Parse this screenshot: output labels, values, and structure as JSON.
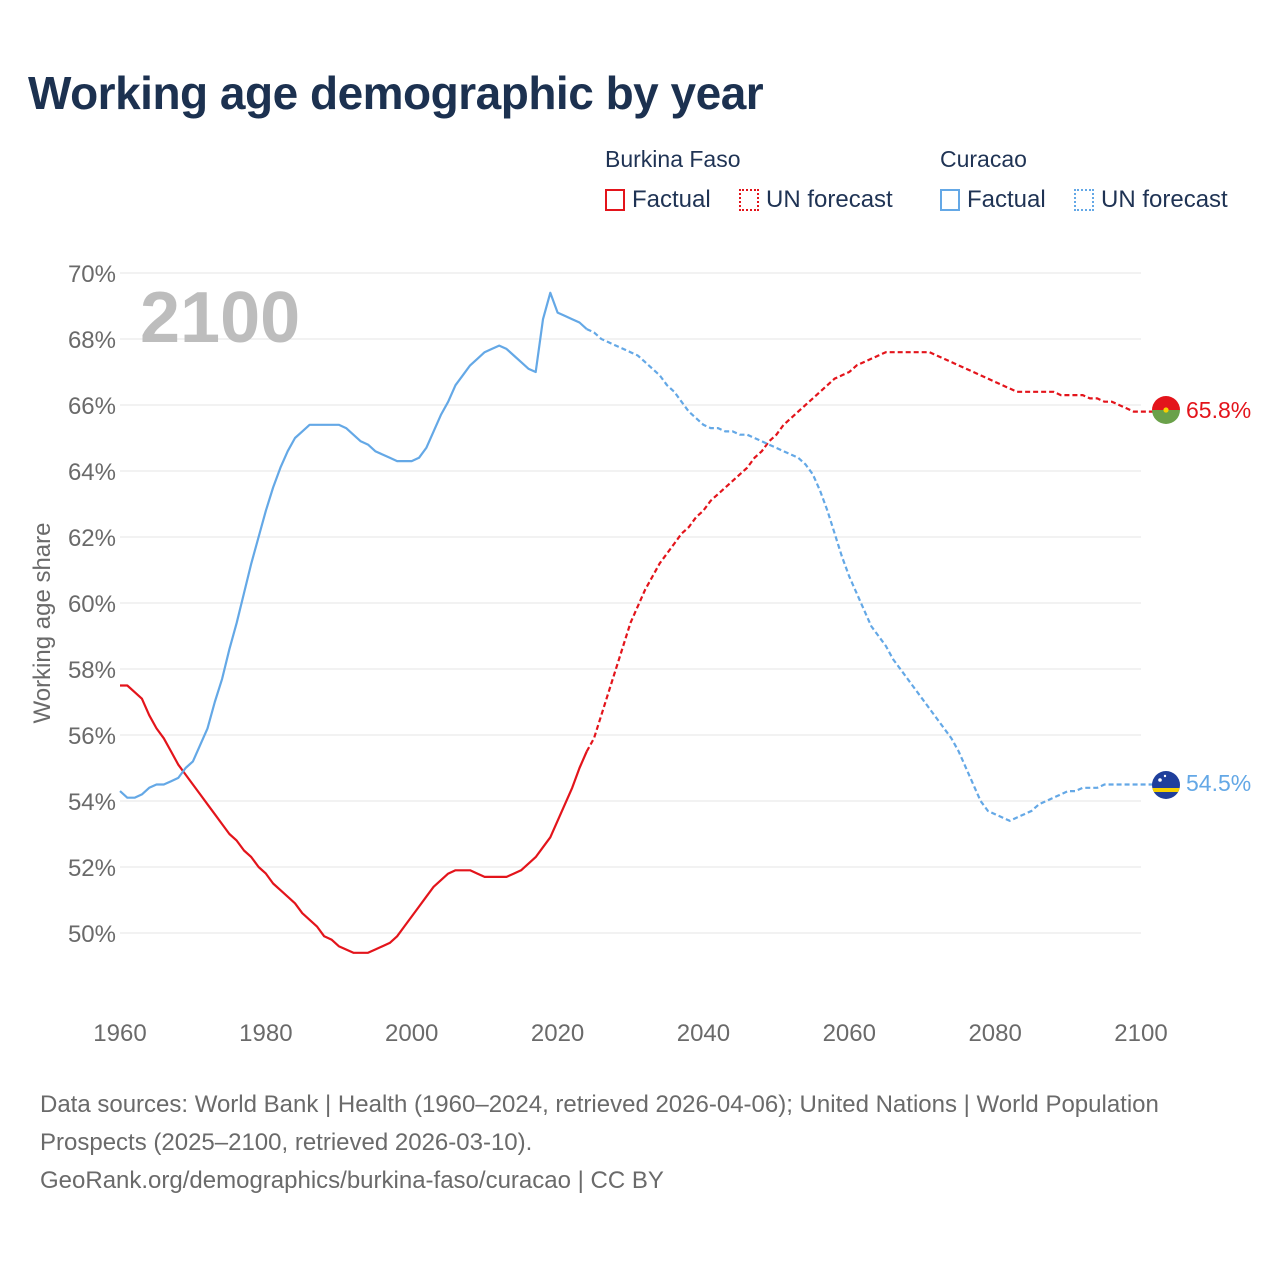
{
  "title": "Working age demographic by year",
  "legend": {
    "groups": [
      {
        "name": "Burkina Faso",
        "color": "#e3141b",
        "factual_label": "Factual",
        "forecast_label": "UN forecast"
      },
      {
        "name": "Curacao",
        "color": "#64a8e6",
        "factual_label": "Factual",
        "forecast_label": "UN forecast"
      }
    ]
  },
  "footer": {
    "sources": "Data sources: World Bank | Health (1960–2024, retrieved 2026-04-06); United Nations | World Population Prospects (2025–2100, retrieved 2026-03-10).",
    "link": "GeoRank.org/demographics/burkina-faso/curacao | CC BY"
  },
  "chart_data": {
    "type": "line",
    "title": "Working age demographic by year",
    "year_overlay": "2100",
    "xlabel": "",
    "ylabel": "Working age share",
    "xlim": [
      1960,
      2104
    ],
    "ylim": [
      48,
      70.5
    ],
    "x_ticks": [
      1960,
      1980,
      2000,
      2020,
      2040,
      2060,
      2080,
      2100
    ],
    "y_ticks": [
      50,
      52,
      54,
      56,
      58,
      60,
      62,
      64,
      66,
      68,
      70
    ],
    "y_tick_labels": [
      "50%",
      "52%",
      "54%",
      "56%",
      "58%",
      "60%",
      "62%",
      "64%",
      "66%",
      "68%",
      "70%"
    ],
    "grid": true,
    "factual_end_year": 2024,
    "series": [
      {
        "name": "Burkina Faso",
        "color": "#e3141b",
        "end_label": "65.8%",
        "flag": "burkina-faso",
        "points": [
          [
            1960,
            57.5
          ],
          [
            1961,
            57.5
          ],
          [
            1962,
            57.3
          ],
          [
            1963,
            57.1
          ],
          [
            1964,
            56.6
          ],
          [
            1965,
            56.2
          ],
          [
            1966,
            55.9
          ],
          [
            1967,
            55.5
          ],
          [
            1968,
            55.1
          ],
          [
            1969,
            54.8
          ],
          [
            1970,
            54.5
          ],
          [
            1971,
            54.2
          ],
          [
            1972,
            53.9
          ],
          [
            1973,
            53.6
          ],
          [
            1974,
            53.3
          ],
          [
            1975,
            53.0
          ],
          [
            1976,
            52.8
          ],
          [
            1977,
            52.5
          ],
          [
            1978,
            52.3
          ],
          [
            1979,
            52.0
          ],
          [
            1980,
            51.8
          ],
          [
            1981,
            51.5
          ],
          [
            1982,
            51.3
          ],
          [
            1983,
            51.1
          ],
          [
            1984,
            50.9
          ],
          [
            1985,
            50.6
          ],
          [
            1986,
            50.4
          ],
          [
            1987,
            50.2
          ],
          [
            1988,
            49.9
          ],
          [
            1989,
            49.8
          ],
          [
            1990,
            49.6
          ],
          [
            1991,
            49.5
          ],
          [
            1992,
            49.4
          ],
          [
            1993,
            49.4
          ],
          [
            1994,
            49.4
          ],
          [
            1995,
            49.5
          ],
          [
            1996,
            49.6
          ],
          [
            1997,
            49.7
          ],
          [
            1998,
            49.9
          ],
          [
            1999,
            50.2
          ],
          [
            2000,
            50.5
          ],
          [
            2001,
            50.8
          ],
          [
            2002,
            51.1
          ],
          [
            2003,
            51.4
          ],
          [
            2004,
            51.6
          ],
          [
            2005,
            51.8
          ],
          [
            2006,
            51.9
          ],
          [
            2007,
            51.9
          ],
          [
            2008,
            51.9
          ],
          [
            2009,
            51.8
          ],
          [
            2010,
            51.7
          ],
          [
            2011,
            51.7
          ],
          [
            2012,
            51.7
          ],
          [
            2013,
            51.7
          ],
          [
            2014,
            51.8
          ],
          [
            2015,
            51.9
          ],
          [
            2016,
            52.1
          ],
          [
            2017,
            52.3
          ],
          [
            2018,
            52.6
          ],
          [
            2019,
            52.9
          ],
          [
            2020,
            53.4
          ],
          [
            2021,
            53.9
          ],
          [
            2022,
            54.4
          ],
          [
            2023,
            55.0
          ],
          [
            2024,
            55.5
          ],
          [
            2025,
            55.9
          ],
          [
            2026,
            56.6
          ],
          [
            2027,
            57.3
          ],
          [
            2028,
            58.0
          ],
          [
            2029,
            58.7
          ],
          [
            2030,
            59.4
          ],
          [
            2031,
            59.9
          ],
          [
            2032,
            60.4
          ],
          [
            2033,
            60.8
          ],
          [
            2034,
            61.2
          ],
          [
            2035,
            61.5
          ],
          [
            2036,
            61.8
          ],
          [
            2037,
            62.1
          ],
          [
            2038,
            62.3
          ],
          [
            2039,
            62.6
          ],
          [
            2040,
            62.8
          ],
          [
            2041,
            63.1
          ],
          [
            2042,
            63.3
          ],
          [
            2043,
            63.5
          ],
          [
            2044,
            63.7
          ],
          [
            2045,
            63.9
          ],
          [
            2046,
            64.1
          ],
          [
            2047,
            64.4
          ],
          [
            2048,
            64.6
          ],
          [
            2049,
            64.9
          ],
          [
            2050,
            65.1
          ],
          [
            2051,
            65.4
          ],
          [
            2052,
            65.6
          ],
          [
            2053,
            65.8
          ],
          [
            2054,
            66.0
          ],
          [
            2055,
            66.2
          ],
          [
            2056,
            66.4
          ],
          [
            2057,
            66.6
          ],
          [
            2058,
            66.8
          ],
          [
            2059,
            66.9
          ],
          [
            2060,
            67.0
          ],
          [
            2061,
            67.2
          ],
          [
            2062,
            67.3
          ],
          [
            2063,
            67.4
          ],
          [
            2064,
            67.5
          ],
          [
            2065,
            67.6
          ],
          [
            2066,
            67.6
          ],
          [
            2067,
            67.6
          ],
          [
            2068,
            67.6
          ],
          [
            2069,
            67.6
          ],
          [
            2070,
            67.6
          ],
          [
            2071,
            67.6
          ],
          [
            2072,
            67.5
          ],
          [
            2073,
            67.4
          ],
          [
            2074,
            67.3
          ],
          [
            2075,
            67.2
          ],
          [
            2076,
            67.1
          ],
          [
            2077,
            67.0
          ],
          [
            2078,
            66.9
          ],
          [
            2079,
            66.8
          ],
          [
            2080,
            66.7
          ],
          [
            2081,
            66.6
          ],
          [
            2082,
            66.5
          ],
          [
            2083,
            66.4
          ],
          [
            2084,
            66.4
          ],
          [
            2085,
            66.4
          ],
          [
            2086,
            66.4
          ],
          [
            2087,
            66.4
          ],
          [
            2088,
            66.4
          ],
          [
            2089,
            66.3
          ],
          [
            2090,
            66.3
          ],
          [
            2091,
            66.3
          ],
          [
            2092,
            66.3
          ],
          [
            2093,
            66.2
          ],
          [
            2094,
            66.2
          ],
          [
            2095,
            66.1
          ],
          [
            2096,
            66.1
          ],
          [
            2097,
            66.0
          ],
          [
            2098,
            65.9
          ],
          [
            2099,
            65.8
          ],
          [
            2100,
            65.8
          ]
        ]
      },
      {
        "name": "Curacao",
        "color": "#64a8e6",
        "end_label": "54.5%",
        "flag": "curacao",
        "points": [
          [
            1960,
            54.3
          ],
          [
            1961,
            54.1
          ],
          [
            1962,
            54.1
          ],
          [
            1963,
            54.2
          ],
          [
            1964,
            54.4
          ],
          [
            1965,
            54.5
          ],
          [
            1966,
            54.5
          ],
          [
            1967,
            54.6
          ],
          [
            1968,
            54.7
          ],
          [
            1969,
            55.0
          ],
          [
            1970,
            55.2
          ],
          [
            1971,
            55.7
          ],
          [
            1972,
            56.2
          ],
          [
            1973,
            57.0
          ],
          [
            1974,
            57.7
          ],
          [
            1975,
            58.6
          ],
          [
            1976,
            59.4
          ],
          [
            1977,
            60.3
          ],
          [
            1978,
            61.2
          ],
          [
            1979,
            62.0
          ],
          [
            1980,
            62.8
          ],
          [
            1981,
            63.5
          ],
          [
            1982,
            64.1
          ],
          [
            1983,
            64.6
          ],
          [
            1984,
            65.0
          ],
          [
            1985,
            65.2
          ],
          [
            1986,
            65.4
          ],
          [
            1987,
            65.4
          ],
          [
            1988,
            65.4
          ],
          [
            1989,
            65.4
          ],
          [
            1990,
            65.4
          ],
          [
            1991,
            65.3
          ],
          [
            1992,
            65.1
          ],
          [
            1993,
            64.9
          ],
          [
            1994,
            64.8
          ],
          [
            1995,
            64.6
          ],
          [
            1996,
            64.5
          ],
          [
            1997,
            64.4
          ],
          [
            1998,
            64.3
          ],
          [
            1999,
            64.3
          ],
          [
            2000,
            64.3
          ],
          [
            2001,
            64.4
          ],
          [
            2002,
            64.7
          ],
          [
            2003,
            65.2
          ],
          [
            2004,
            65.7
          ],
          [
            2005,
            66.1
          ],
          [
            2006,
            66.6
          ],
          [
            2007,
            66.9
          ],
          [
            2008,
            67.2
          ],
          [
            2009,
            67.4
          ],
          [
            2010,
            67.6
          ],
          [
            2011,
            67.7
          ],
          [
            2012,
            67.8
          ],
          [
            2013,
            67.7
          ],
          [
            2014,
            67.5
          ],
          [
            2015,
            67.3
          ],
          [
            2016,
            67.1
          ],
          [
            2017,
            67.0
          ],
          [
            2018,
            68.6
          ],
          [
            2019,
            69.4
          ],
          [
            2020,
            68.8
          ],
          [
            2021,
            68.7
          ],
          [
            2022,
            68.6
          ],
          [
            2023,
            68.5
          ],
          [
            2024,
            68.3
          ],
          [
            2025,
            68.2
          ],
          [
            2026,
            68.0
          ],
          [
            2027,
            67.9
          ],
          [
            2028,
            67.8
          ],
          [
            2029,
            67.7
          ],
          [
            2030,
            67.6
          ],
          [
            2031,
            67.5
          ],
          [
            2032,
            67.3
          ],
          [
            2033,
            67.1
          ],
          [
            2034,
            66.9
          ],
          [
            2035,
            66.6
          ],
          [
            2036,
            66.4
          ],
          [
            2037,
            66.1
          ],
          [
            2038,
            65.8
          ],
          [
            2039,
            65.6
          ],
          [
            2040,
            65.4
          ],
          [
            2041,
            65.3
          ],
          [
            2042,
            65.3
          ],
          [
            2043,
            65.2
          ],
          [
            2044,
            65.2
          ],
          [
            2045,
            65.1
          ],
          [
            2046,
            65.1
          ],
          [
            2047,
            65.0
          ],
          [
            2048,
            64.9
          ],
          [
            2049,
            64.8
          ],
          [
            2050,
            64.7
          ],
          [
            2051,
            64.6
          ],
          [
            2052,
            64.5
          ],
          [
            2053,
            64.4
          ],
          [
            2054,
            64.2
          ],
          [
            2055,
            63.9
          ],
          [
            2056,
            63.4
          ],
          [
            2057,
            62.8
          ],
          [
            2058,
            62.1
          ],
          [
            2059,
            61.4
          ],
          [
            2060,
            60.8
          ],
          [
            2061,
            60.3
          ],
          [
            2062,
            59.8
          ],
          [
            2063,
            59.3
          ],
          [
            2064,
            59.0
          ],
          [
            2065,
            58.7
          ],
          [
            2066,
            58.3
          ],
          [
            2067,
            58.0
          ],
          [
            2068,
            57.7
          ],
          [
            2069,
            57.4
          ],
          [
            2070,
            57.1
          ],
          [
            2071,
            56.8
          ],
          [
            2072,
            56.5
          ],
          [
            2073,
            56.2
          ],
          [
            2074,
            55.9
          ],
          [
            2075,
            55.5
          ],
          [
            2076,
            55.0
          ],
          [
            2077,
            54.5
          ],
          [
            2078,
            54.0
          ],
          [
            2079,
            53.7
          ],
          [
            2080,
            53.6
          ],
          [
            2081,
            53.5
          ],
          [
            2082,
            53.4
          ],
          [
            2083,
            53.5
          ],
          [
            2084,
            53.6
          ],
          [
            2085,
            53.7
          ],
          [
            2086,
            53.9
          ],
          [
            2087,
            54.0
          ],
          [
            2088,
            54.1
          ],
          [
            2089,
            54.2
          ],
          [
            2090,
            54.3
          ],
          [
            2091,
            54.3
          ],
          [
            2092,
            54.4
          ],
          [
            2093,
            54.4
          ],
          [
            2094,
            54.4
          ],
          [
            2095,
            54.5
          ],
          [
            2096,
            54.5
          ],
          [
            2097,
            54.5
          ],
          [
            2098,
            54.5
          ],
          [
            2099,
            54.5
          ],
          [
            2100,
            54.5
          ]
        ]
      }
    ]
  }
}
